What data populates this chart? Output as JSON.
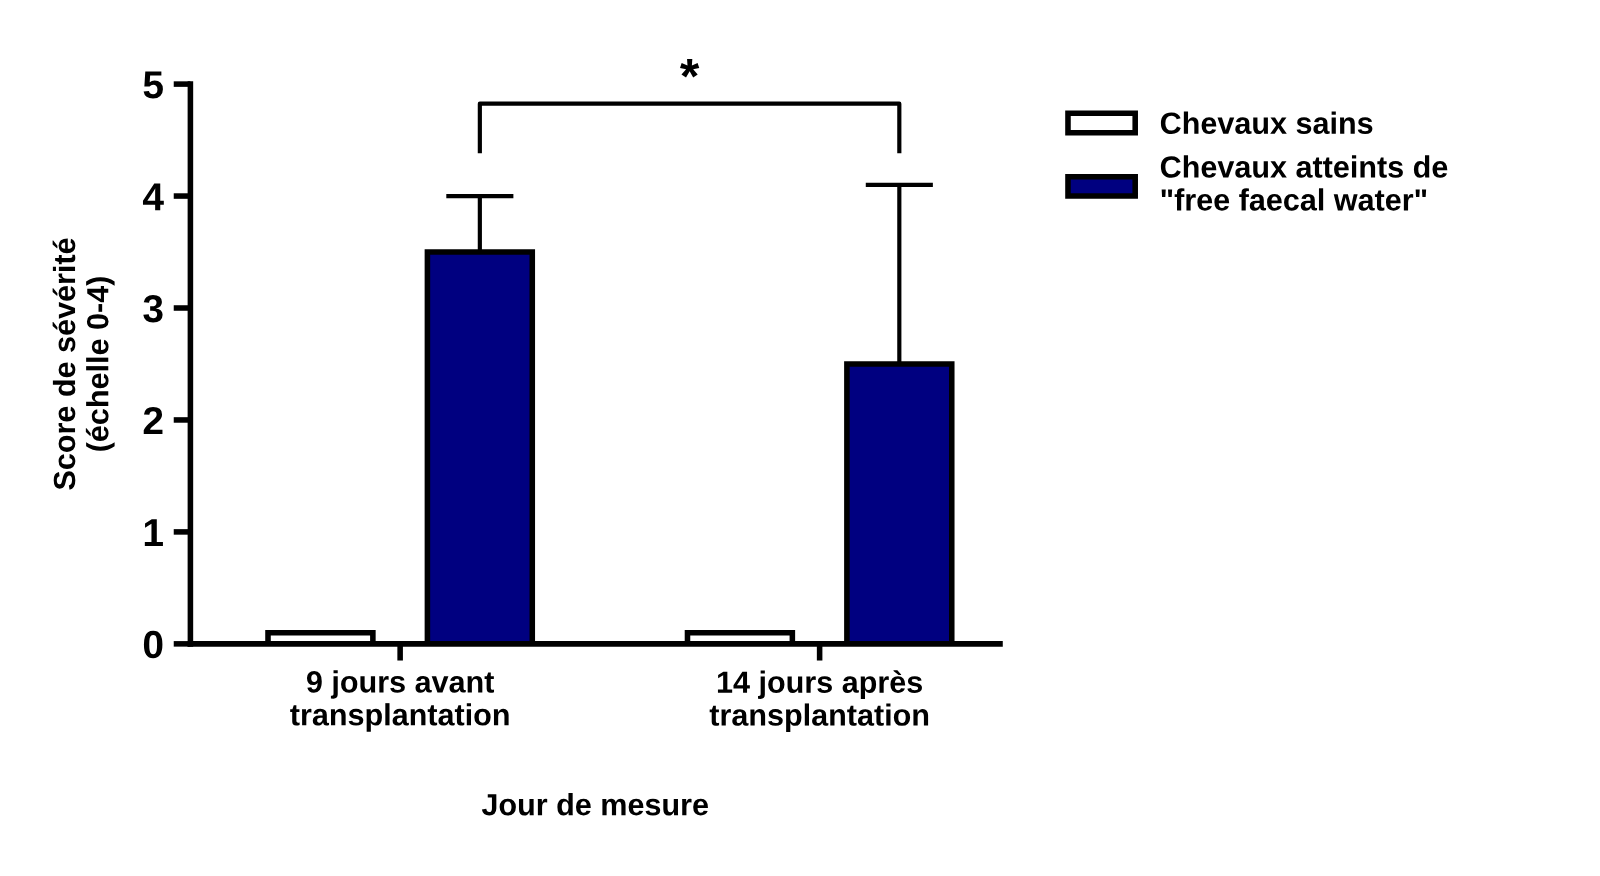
{
  "chart_data": {
    "type": "bar",
    "categories": [
      "9 jours avant\ntransplantation",
      "14 jours après\ntransplantation"
    ],
    "series": [
      {
        "name": "Chevaux sains",
        "color": "#ffffff",
        "values": [
          0.1,
          0.1
        ]
      },
      {
        "name": "Chevaux atteints de\n\"free faecal water\"",
        "color": "#000080",
        "values": [
          3.5,
          2.5
        ],
        "errors": [
          [
            3.5,
            4.0
          ],
          [
            2.5,
            4.1
          ]
        ]
      }
    ],
    "xlabel": "Jour de mesure",
    "ylabel": "Score de sévérité\n(échelle 0-4)",
    "ylim": [
      0,
      5
    ],
    "yticks": [
      0,
      1,
      2,
      3,
      4,
      5
    ],
    "annotations": [
      "*"
    ],
    "legend": "right",
    "grid": false
  }
}
